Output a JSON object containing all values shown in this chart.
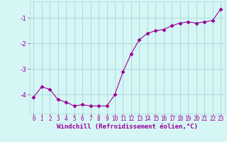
{
  "x": [
    0,
    1,
    2,
    3,
    4,
    5,
    6,
    7,
    8,
    9,
    10,
    11,
    12,
    13,
    14,
    15,
    16,
    17,
    18,
    19,
    20,
    21,
    22,
    23
  ],
  "y": [
    -4.1,
    -3.7,
    -3.8,
    -4.2,
    -4.3,
    -4.45,
    -4.4,
    -4.45,
    -4.45,
    -4.45,
    -4.0,
    -3.1,
    -2.4,
    -1.85,
    -1.6,
    -1.5,
    -1.45,
    -1.3,
    -1.2,
    -1.15,
    -1.2,
    -1.15,
    -1.1,
    -0.65
  ],
  "line_color": "#990099",
  "marker": "D",
  "marker_size": 2.5,
  "bg_color": "#d6f5f5",
  "grid_color": "#aadddd",
  "xlabel": "Windchill (Refroidissement éolien,°C)",
  "xlabel_color": "#990099",
  "xlabel_fontsize": 6.5,
  "tick_color": "#990099",
  "tick_fontsize": 5.5,
  "ylim": [
    -4.75,
    -0.35
  ],
  "xlim": [
    -0.5,
    23.5
  ],
  "yticks": [
    -4,
    -3,
    -2,
    -1
  ],
  "xticks": [
    0,
    1,
    2,
    3,
    4,
    5,
    6,
    7,
    8,
    9,
    10,
    11,
    12,
    13,
    14,
    15,
    16,
    17,
    18,
    19,
    20,
    21,
    22,
    23
  ]
}
